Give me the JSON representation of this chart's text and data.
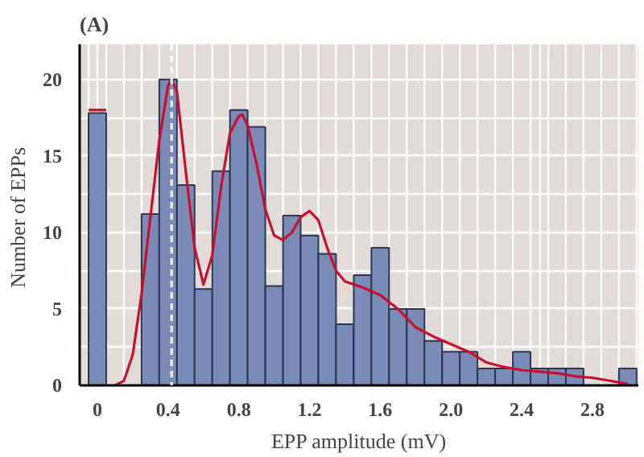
{
  "chart_data": {
    "type": "histogram",
    "title": "(A)",
    "xlabel": "EPP amplitude (mV)",
    "ylabel": "Number of  EPPs",
    "bins": [
      -0.05,
      0.05,
      0.15,
      0.25,
      0.35,
      0.45,
      0.55,
      0.65,
      0.75,
      0.85,
      0.95,
      1.05,
      1.15,
      1.25,
      1.35,
      1.45,
      1.55,
      1.65,
      1.75,
      1.85,
      1.95,
      2.05,
      2.15,
      2.25,
      2.35,
      2.45,
      2.55,
      2.65,
      2.75,
      2.85,
      2.95,
      3.05
    ],
    "values": [
      17.8,
      0,
      0,
      11.2,
      20,
      13.1,
      6.3,
      14,
      18,
      16.9,
      6.5,
      11.1,
      9.8,
      8.6,
      4.0,
      7.2,
      9.0,
      5.0,
      5.0,
      2.9,
      2.2,
      2.2,
      1.1,
      1.1,
      2.2,
      1.1,
      1.1,
      1.1,
      0,
      0,
      1.1
    ],
    "color": "#7a8bb8",
    "series": [
      {
        "type": "line",
        "color": "#c8102e",
        "x": [
          -0.05,
          0.05
        ],
        "values": [
          18,
          18
        ]
      },
      {
        "type": "line",
        "color": "#c8102e",
        "x": [
          0.1,
          0.15,
          0.2,
          0.25,
          0.3,
          0.35,
          0.4,
          0.42,
          0.45,
          0.5,
          0.55,
          0.6,
          0.65,
          0.7,
          0.75,
          0.8,
          0.82,
          0.85,
          0.9,
          0.95,
          1.0,
          1.05,
          1.1,
          1.15,
          1.2,
          1.25,
          1.3,
          1.35,
          1.4,
          1.5,
          1.6,
          1.7,
          1.8,
          1.9,
          2.0,
          2.1,
          2.2,
          2.3,
          2.4,
          2.5,
          2.6,
          2.7,
          2.8,
          2.9,
          3.0
        ],
        "values": [
          0,
          0.3,
          2,
          6,
          11,
          16,
          19.6,
          20,
          19.2,
          14,
          9,
          6.6,
          8.5,
          13,
          16.5,
          17.6,
          17.7,
          17,
          14.5,
          11.5,
          9.8,
          9.5,
          10,
          11,
          11.4,
          10.8,
          9,
          7.5,
          6.8,
          6.4,
          5.9,
          5.0,
          3.8,
          3.2,
          2.7,
          2.2,
          1.5,
          1.2,
          1.0,
          0.9,
          0.8,
          0.6,
          0.5,
          0.3,
          0.1
        ]
      }
    ],
    "ref_lines": [
      {
        "axis": "x",
        "value": 0.42,
        "color": "#ffffff",
        "line_style": "dashed"
      }
    ],
    "xlim": [
      -0.1,
      3.06
    ],
    "ylim": [
      0,
      22.3
    ],
    "xticks": [
      {
        "value": 0,
        "label": "0"
      },
      0.4,
      0.8,
      1.2,
      1.6,
      {
        "value": 2,
        "label": "2.0"
      },
      2.4,
      2.8
    ],
    "yticks": [
      0,
      5,
      10,
      15,
      20
    ],
    "grid": true
  }
}
